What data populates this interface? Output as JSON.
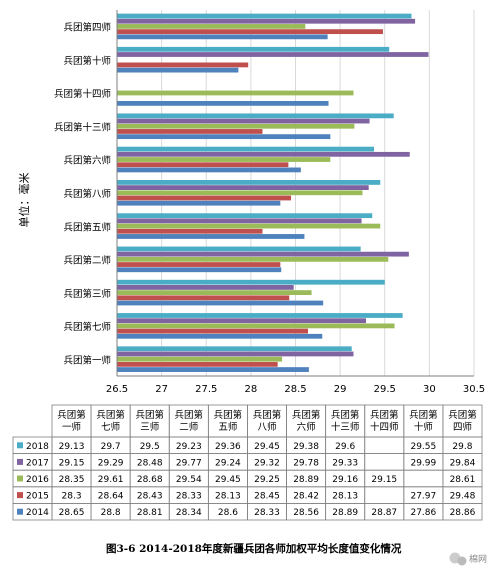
{
  "chart_data": {
    "type": "bar",
    "orientation": "horizontal",
    "ylabel": "单位：毫米",
    "xlim": [
      26.5,
      30.5
    ],
    "xticks": [
      "26.5",
      "27",
      "27.5",
      "28",
      "28.5",
      "29",
      "29.5",
      "30",
      "30.5"
    ],
    "grid": true,
    "categories": [
      "兵团第一师",
      "兵团第七师",
      "兵团第三师",
      "兵团第二师",
      "兵团第五师",
      "兵团第八师",
      "兵团第六师",
      "兵团第十三师",
      "兵团第十四师",
      "兵团第十师",
      "兵团第四师"
    ],
    "table_headers": [
      [
        "兵团第",
        "一师"
      ],
      [
        "兵团第",
        "七师"
      ],
      [
        "兵团第",
        "三师"
      ],
      [
        "兵团第",
        "二师"
      ],
      [
        "兵团第",
        "五师"
      ],
      [
        "兵团第",
        "八师"
      ],
      [
        "兵团第",
        "六师"
      ],
      [
        "兵团第",
        "十三师"
      ],
      [
        "兵团第",
        "十四师"
      ],
      [
        "兵团第",
        "十师"
      ],
      [
        "兵团第",
        "四师"
      ]
    ],
    "series": [
      {
        "name": "2018",
        "color": "#4bacc6",
        "values": [
          29.13,
          29.7,
          29.5,
          29.23,
          29.36,
          29.45,
          29.38,
          29.6,
          null,
          29.55,
          29.8
        ]
      },
      {
        "name": "2017",
        "color": "#8064a2",
        "values": [
          29.15,
          29.29,
          28.48,
          29.77,
          29.24,
          29.32,
          29.78,
          29.33,
          null,
          29.99,
          29.84
        ]
      },
      {
        "name": "2016",
        "color": "#9bbb59",
        "values": [
          28.35,
          29.61,
          28.68,
          29.54,
          29.45,
          29.25,
          28.89,
          29.16,
          29.15,
          null,
          28.61
        ]
      },
      {
        "name": "2015",
        "color": "#c0504d",
        "values": [
          28.3,
          28.64,
          28.43,
          28.33,
          28.13,
          28.45,
          28.42,
          28.13,
          null,
          27.97,
          29.48
        ]
      },
      {
        "name": "2014",
        "color": "#4f81bd",
        "values": [
          28.65,
          28.8,
          28.81,
          28.34,
          28.6,
          28.33,
          28.56,
          28.89,
          28.87,
          27.86,
          28.86
        ]
      }
    ],
    "table_text": {
      "2018": [
        "29.13",
        "29.7",
        "29.5",
        "29.23",
        "29.36",
        "29.45",
        "29.38",
        "29.6",
        "",
        "29.55",
        "29.8"
      ],
      "2017": [
        "29.15",
        "29.29",
        "28.48",
        "29.77",
        "29.24",
        "29.32",
        "29.78",
        "29.33",
        "",
        "29.99",
        "29.84"
      ],
      "2016": [
        "28.35",
        "29.61",
        "28.68",
        "29.54",
        "29.45",
        "29.25",
        "28.89",
        "29.16",
        "29.15",
        "",
        "28.61"
      ],
      "2015": [
        "28.3",
        "28.64",
        "28.43",
        "28.33",
        "28.13",
        "28.45",
        "28.42",
        "28.13",
        "",
        "27.97",
        "29.48"
      ],
      "2014": [
        "28.65",
        "28.8",
        "28.81",
        "28.34",
        "28.6",
        "28.33",
        "28.56",
        "28.89",
        "28.87",
        "27.86",
        "28.86"
      ]
    }
  },
  "caption": "图3-6  2014-2018年度新疆兵团各师加权平均长度值变化情况",
  "watermark": "棉网"
}
